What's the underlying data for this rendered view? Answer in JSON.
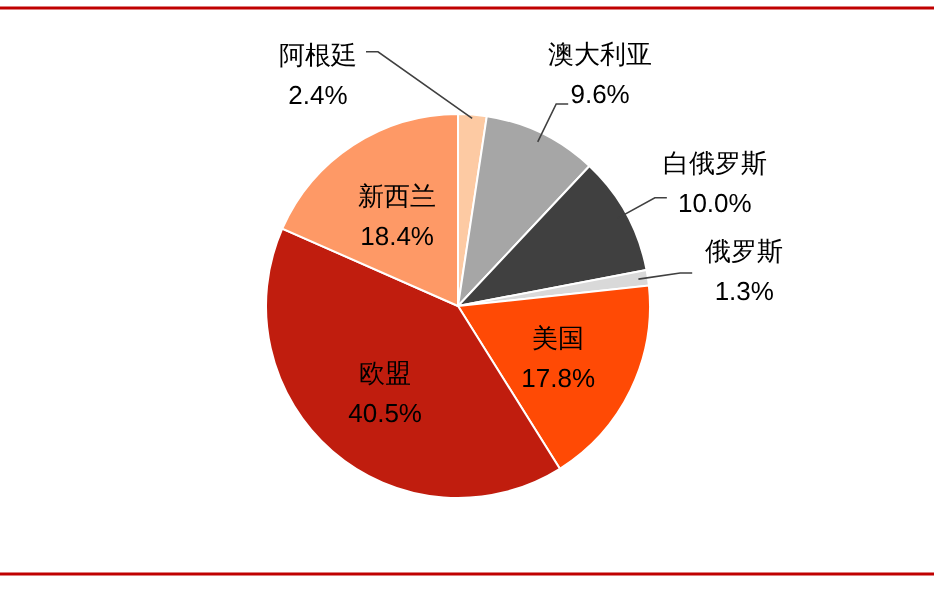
{
  "chart_data": {
    "type": "pie",
    "categories": [
      "阿根廷",
      "澳大利亚",
      "白俄罗斯",
      "俄罗斯",
      "美国",
      "欧盟",
      "新西兰"
    ],
    "values": [
      2.4,
      9.6,
      10.0,
      1.3,
      17.8,
      40.5,
      18.4
    ],
    "value_labels": [
      "2.4%",
      "9.6%",
      "10.0%",
      "1.3%",
      "17.8%",
      "40.5%",
      "18.4%"
    ],
    "colors": [
      "#fdcaa3",
      "#a6a6a6",
      "#404040",
      "#d9d9d9",
      "#ff4a05",
      "#c01d0e",
      "#fe9966"
    ]
  }
}
